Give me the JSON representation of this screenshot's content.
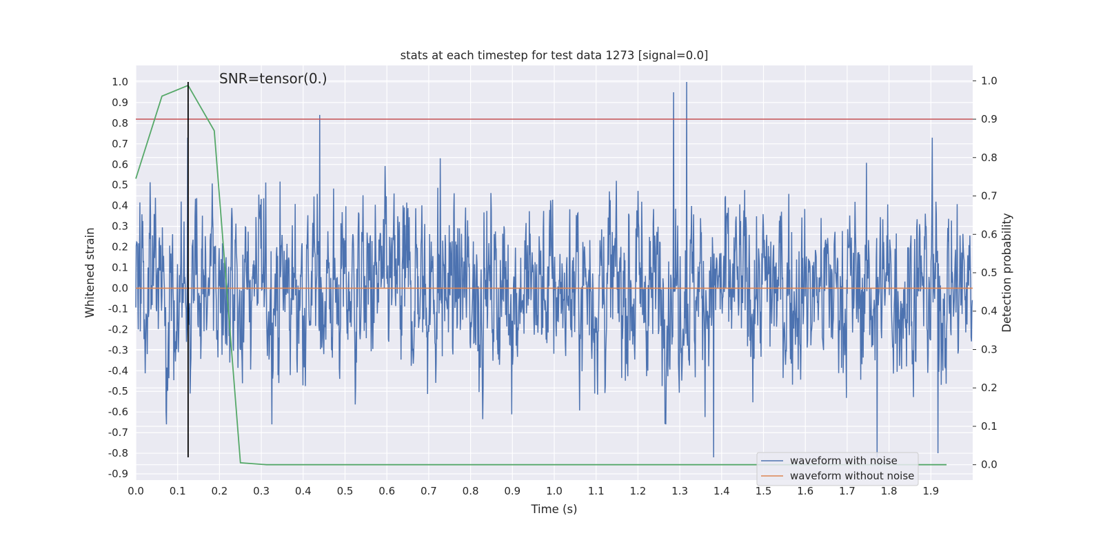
{
  "chart_data": {
    "type": "line",
    "title": "stats at each timestep for test data 1273 [signal=0.0]",
    "xlabel": "Time (s)",
    "ylabel": "Whitened strain",
    "y2label": "Detection probability",
    "annotation": "SNR=tensor(0.)",
    "xlim": [
      0.0,
      2.0
    ],
    "ylim": [
      -0.93,
      1.08
    ],
    "y2lim": [
      -0.04,
      1.04
    ],
    "grid": true,
    "legend_position": "lower-right",
    "x_ticks": [
      "0.0",
      "0.1",
      "0.2",
      "0.3",
      "0.4",
      "0.5",
      "0.6",
      "0.7",
      "0.8",
      "0.9",
      "1.0",
      "1.1",
      "1.2",
      "1.3",
      "1.4",
      "1.5",
      "1.6",
      "1.7",
      "1.8",
      "1.9"
    ],
    "y_ticks": [
      "-0.9",
      "-0.8",
      "-0.7",
      "-0.6",
      "-0.5",
      "-0.4",
      "-0.3",
      "-0.2",
      "-0.1",
      "0.0",
      "0.1",
      "0.2",
      "0.3",
      "0.4",
      "0.5",
      "0.6",
      "0.7",
      "0.8",
      "0.9",
      "1.0"
    ],
    "y2_ticks": [
      "0.0",
      "0.1",
      "0.2",
      "0.3",
      "0.4",
      "0.5",
      "0.6",
      "0.7",
      "0.8",
      "0.9",
      "1.0"
    ],
    "series": [
      {
        "name": "waveform with noise",
        "color": "#4c72b0",
        "axis": "left",
        "sample_count": 2048,
        "x_range": [
          0.0,
          2.0
        ],
        "peaks": [
          {
            "x": 0.124,
            "y": 0.73
          },
          {
            "x": 0.44,
            "y": 0.84
          },
          {
            "x": 0.728,
            "y": 0.63
          },
          {
            "x": 1.286,
            "y": 0.95
          },
          {
            "x": 1.317,
            "y": 1.0
          },
          {
            "x": 1.382,
            "y": -0.82
          },
          {
            "x": 1.772,
            "y": -0.82
          },
          {
            "x": 1.918,
            "y": -0.8
          },
          {
            "x": 1.904,
            "y": 0.73
          }
        ],
        "typical_amplitude": 0.2
      },
      {
        "name": "waveform without noise",
        "color": "#dd8452",
        "axis": "left",
        "x": [
          0.0,
          2.0
        ],
        "y": [
          0.0,
          0.0
        ]
      },
      {
        "name": "",
        "color": "#55a868",
        "axis": "right",
        "x": [
          0.0,
          0.0625,
          0.125,
          0.1875,
          0.25,
          0.3125,
          0.375,
          0.5,
          1.0,
          1.5,
          1.9375
        ],
        "y": [
          0.745,
          0.96,
          0.988,
          0.87,
          0.005,
          0.0,
          0.0,
          0.0,
          0.0,
          0.0,
          0.0
        ]
      }
    ],
    "hlines": [
      {
        "axis": "right",
        "y": 0.9,
        "color": "#c44e52"
      }
    ],
    "vlines": [
      {
        "x": 0.125,
        "ymin": -0.82,
        "ymax": 1.0,
        "color": "#000000"
      }
    ],
    "legend": [
      {
        "label": "waveform with noise",
        "color": "#4c72b0"
      },
      {
        "label": "waveform without noise",
        "color": "#dd8452"
      }
    ]
  }
}
